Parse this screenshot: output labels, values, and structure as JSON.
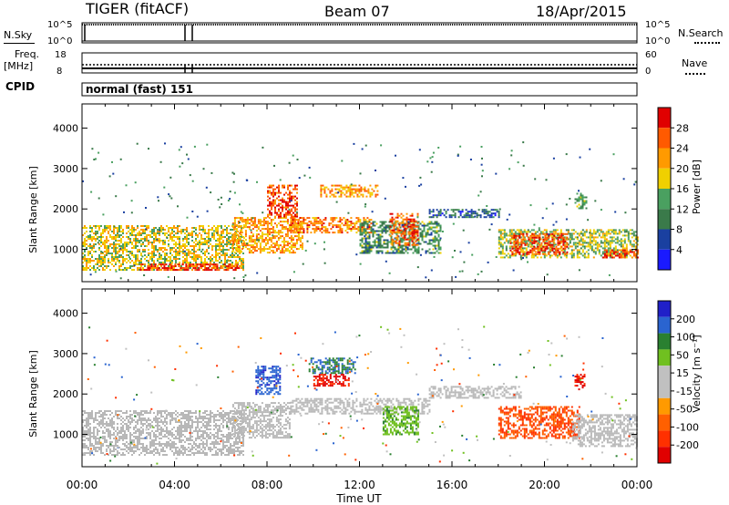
{
  "header": {
    "radar": "TIGER (fitACF)",
    "beam": "Beam 07",
    "date": "18/Apr/2015"
  },
  "strips": {
    "nsky_label": "N.Sky",
    "nsearch_label": "N.Search",
    "noise_ticks": [
      "10^5",
      "10^0"
    ],
    "freq_label": "Freq.",
    "freq_unit": "[MHz]",
    "freq_ticks": [
      "18",
      "8"
    ],
    "nave_label": "Nave",
    "nave_ticks": [
      "60",
      "0"
    ],
    "cpid_label": "CPID",
    "cpid_value": "normal (fast) 151"
  },
  "colors": {
    "power": [
      "#1a1aff",
      "#1a40a0",
      "#3a7a4a",
      "#4aa060",
      "#f0d000",
      "#ff9a00",
      "#ff5a00",
      "#e00000"
    ],
    "velocity": [
      "#2020c8",
      "#2a64d0",
      "#2a8030",
      "#70c020",
      "#c0c0c0",
      "#c0c0c0",
      "#ff9a00",
      "#ff6000",
      "#ff3000",
      "#e00000"
    ],
    "ground_scatter": "#b8b8b8"
  },
  "chart_data": [
    {
      "type": "heatmap",
      "panel": "power",
      "ylabel": "Slant Range [km]",
      "y_ticks": [
        "1000",
        "2000",
        "3000",
        "4000"
      ],
      "ylim": [
        200,
        4600
      ],
      "colorbar_label": "Power [dB]",
      "colorbar_ticks": [
        "4",
        "8",
        "12",
        "16",
        "20",
        "24",
        "28"
      ],
      "colorbar_range": [
        0,
        32
      ],
      "regions": [
        {
          "t0": 0.0,
          "t1": 7.0,
          "r0": 500,
          "r1": 1600,
          "level": 18
        },
        {
          "t0": 2.5,
          "t1": 6.8,
          "r0": 500,
          "r1": 650,
          "level": 28
        },
        {
          "t0": 6.5,
          "t1": 9.5,
          "r0": 900,
          "r1": 1800,
          "level": 22
        },
        {
          "t0": 8.0,
          "t1": 9.3,
          "r0": 1800,
          "r1": 2600,
          "level": 27
        },
        {
          "t0": 9.0,
          "t1": 12.5,
          "r0": 1400,
          "r1": 1800,
          "level": 24
        },
        {
          "t0": 10.3,
          "t1": 12.8,
          "r0": 2300,
          "r1": 2600,
          "level": 22
        },
        {
          "t0": 12.0,
          "t1": 15.5,
          "r0": 900,
          "r1": 1700,
          "level": 12
        },
        {
          "t0": 13.3,
          "t1": 14.5,
          "r0": 1100,
          "r1": 1900,
          "level": 26
        },
        {
          "t0": 15.0,
          "t1": 18.0,
          "r0": 1800,
          "r1": 2000,
          "level": 8
        },
        {
          "t0": 18.0,
          "t1": 24.0,
          "r0": 800,
          "r1": 1500,
          "level": 16
        },
        {
          "t0": 18.5,
          "t1": 21.0,
          "r0": 900,
          "r1": 1400,
          "level": 27
        },
        {
          "t0": 22.5,
          "t1": 24.0,
          "r0": 800,
          "r1": 1000,
          "level": 27
        },
        {
          "t0": 21.3,
          "t1": 21.8,
          "r0": 2000,
          "r1": 2400,
          "level": 14
        }
      ]
    },
    {
      "type": "heatmap",
      "panel": "velocity",
      "ylabel": "Slant Range [km]",
      "y_ticks": [
        "1000",
        "2000",
        "3000",
        "4000"
      ],
      "ylim": [
        200,
        4600
      ],
      "xlabel": "Time UT",
      "x_ticks": [
        "00:00",
        "04:00",
        "08:00",
        "12:00",
        "16:00",
        "20:00",
        "00:00"
      ],
      "xlim": [
        0,
        24
      ],
      "colorbar_label": "Velocity [m s⁻¹]",
      "colorbar_ticks": [
        "200",
        "100",
        "50",
        "15",
        "-15",
        "-50",
        "-100",
        "-200"
      ],
      "colorbar_range": [
        -250,
        250
      ],
      "regions": [
        {
          "t0": 0.0,
          "t1": 7.0,
          "r0": 500,
          "r1": 1600,
          "vel": 0
        },
        {
          "t0": 6.5,
          "t1": 9.0,
          "r0": 900,
          "r1": 1800,
          "vel": 0
        },
        {
          "t0": 7.5,
          "t1": 8.6,
          "r0": 2000,
          "r1": 2700,
          "vel": 180
        },
        {
          "t0": 9.8,
          "t1": 11.8,
          "r0": 2500,
          "r1": 2900,
          "vel": 150
        },
        {
          "t0": 10.0,
          "t1": 11.5,
          "r0": 2200,
          "r1": 2500,
          "vel": -200
        },
        {
          "t0": 9.0,
          "t1": 15.0,
          "r0": 1500,
          "r1": 1900,
          "vel": 0
        },
        {
          "t0": 13.0,
          "t1": 14.5,
          "r0": 1000,
          "r1": 1700,
          "vel": 80
        },
        {
          "t0": 15.0,
          "t1": 19.0,
          "r0": 1900,
          "r1": 2200,
          "vel": 0
        },
        {
          "t0": 18.0,
          "t1": 21.5,
          "r0": 900,
          "r1": 1700,
          "vel": -150
        },
        {
          "t0": 21.2,
          "t1": 24.0,
          "r0": 700,
          "r1": 1500,
          "vel": 0
        },
        {
          "t0": 21.3,
          "t1": 21.7,
          "r0": 2100,
          "r1": 2500,
          "vel": -200
        }
      ]
    }
  ]
}
